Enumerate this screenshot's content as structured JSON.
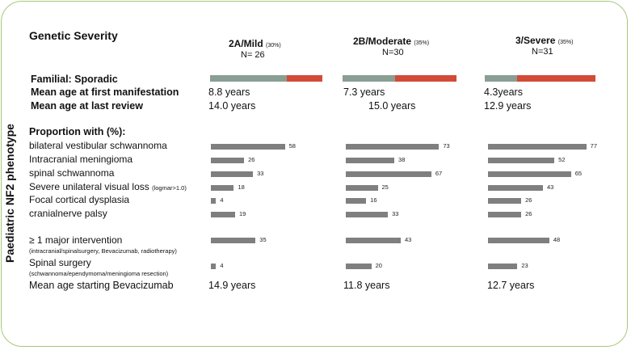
{
  "yaxis_label": "Paediatric NF2 phenotype",
  "title": "Genetic Severity",
  "columns": [
    {
      "name": "2A/Mild",
      "pct": "(30%)",
      "n": "N= 26"
    },
    {
      "name": "2B/Moderate",
      "pct": "(35%)",
      "n": "N=30"
    },
    {
      "name": "3/Severe",
      "pct": "(35%)",
      "n": "N=31"
    }
  ],
  "labels": {
    "familial": "Familial: Sporadic",
    "first_manifestation": "Mean age at first manifestation",
    "last_review": "Mean age at last review",
    "proportion": "Proportion with (%):",
    "bevacizumab": "Mean age starting Bevacizumab"
  },
  "age_first_manifestation": [
    "8.8 years",
    "7.3 years",
    "4.3years"
  ],
  "age_last_review": [
    "14.0  years",
    "15.0 years",
    "12.9 years"
  ],
  "age_bevacizumab": [
    "14.9 years",
    "11.8 years",
    "12.7 years"
  ],
  "colors": {
    "familial": "#8a9e93",
    "sporadic": "#d24b37",
    "bar": "#7f7f7f",
    "border": "#a9c77a"
  },
  "chart_data": {
    "type": "bar",
    "orientation": "horizontal",
    "familial_sporadic_ratio": [
      {
        "familial": 0.68,
        "sporadic": 0.32
      },
      {
        "familial": 0.46,
        "sporadic": 0.54
      },
      {
        "familial": 0.29,
        "sporadic": 0.71
      }
    ],
    "rows": [
      {
        "label": "bilateral vestibular schwannoma",
        "sub": "",
        "values": [
          58,
          73,
          77
        ]
      },
      {
        "label": "Intracranial meningioma",
        "sub": "",
        "values": [
          26,
          38,
          52
        ]
      },
      {
        "label": "spinal schwannoma",
        "sub": "",
        "values": [
          33,
          67,
          65
        ]
      },
      {
        "label": "Severe unilateral visual loss",
        "sub": "(logmar>1.0)",
        "values": [
          18,
          25,
          43
        ]
      },
      {
        "label": "Focal cortical dysplasia",
        "sub": "",
        "values": [
          4,
          16,
          26
        ]
      },
      {
        "label": "cranialnerve palsy",
        "sub": "",
        "values": [
          19,
          33,
          26
        ]
      },
      {
        "label": "≥ 1 major intervention",
        "sub": "(intracranial/spinalsurgery, Bevacizumab, radiotherapy)",
        "values": [
          35,
          43,
          48
        ]
      },
      {
        "label": "Spinal surgery",
        "sub": "(schwannoma/ependymoma/meningioma resection)",
        "values": [
          4,
          20,
          23
        ]
      }
    ]
  }
}
